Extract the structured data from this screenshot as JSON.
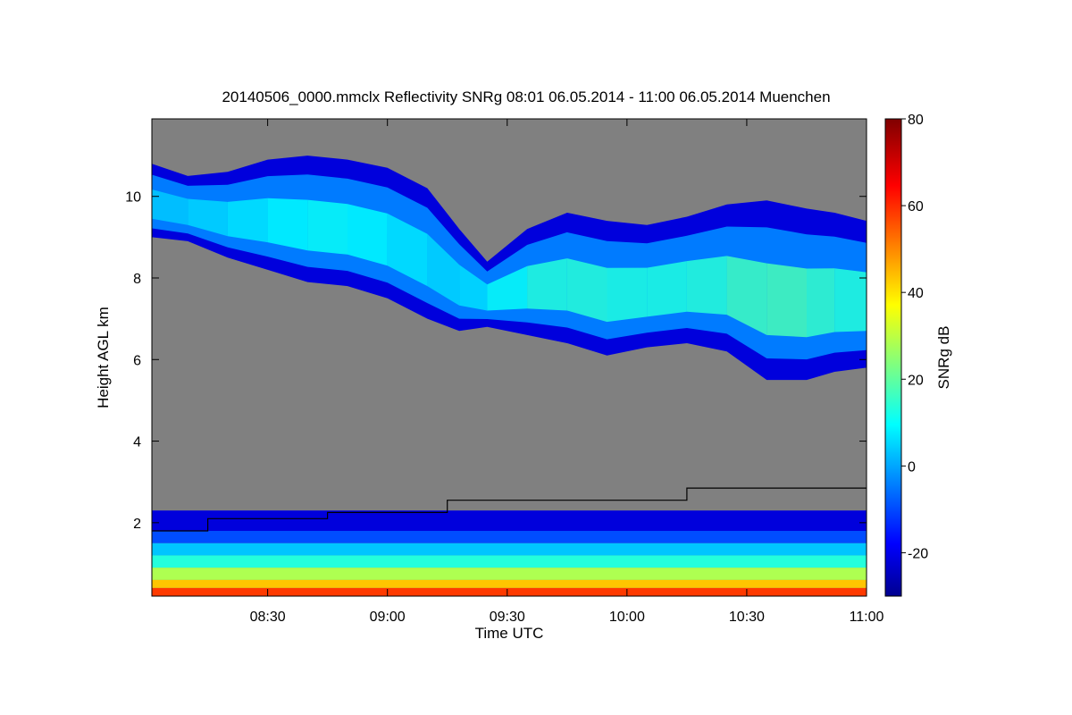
{
  "chart_data": {
    "type": "heatmap",
    "title": "20140506_0000.mmclx Reflectivity SNRg   08:01 06.05.2014 - 11:00 06.05.2014 Muenchen",
    "xlabel": "Time UTC",
    "ylabel": "Height AGL km",
    "x_range_minutes_utc": [
      481,
      660
    ],
    "x_ticks": [
      {
        "minutes": 510,
        "label": "08:30"
      },
      {
        "minutes": 540,
        "label": "09:00"
      },
      {
        "minutes": 570,
        "label": "09:30"
      },
      {
        "minutes": 600,
        "label": "10:00"
      },
      {
        "minutes": 630,
        "label": "10:30"
      },
      {
        "minutes": 660,
        "label": "11:00"
      }
    ],
    "y_range_km": [
      0.2,
      11.9
    ],
    "y_ticks": [
      {
        "km": 2,
        "label": "2"
      },
      {
        "km": 4,
        "label": "4"
      },
      {
        "km": 6,
        "label": "6"
      },
      {
        "km": 8,
        "label": "8"
      },
      {
        "km": 10,
        "label": "10"
      }
    ],
    "colorbar": {
      "label": "SNRg dB",
      "range": [
        -30,
        80
      ],
      "ticks": [
        {
          "value": -20,
          "label": "-20"
        },
        {
          "value": 0,
          "label": "0"
        },
        {
          "value": 20,
          "label": "20"
        },
        {
          "value": 40,
          "label": "40"
        },
        {
          "value": 60,
          "label": "60"
        },
        {
          "value": 80,
          "label": "80"
        }
      ],
      "colormap": "jet"
    },
    "background_color": "#808080",
    "boundary_layer_line": {
      "description": "step line of boundary layer height",
      "points": [
        {
          "t": 481,
          "h": 1.8
        },
        {
          "t": 495,
          "h": 1.8
        },
        {
          "t": 495,
          "h": 2.1
        },
        {
          "t": 525,
          "h": 2.1
        },
        {
          "t": 525,
          "h": 2.25
        },
        {
          "t": 555,
          "h": 2.25
        },
        {
          "t": 555,
          "h": 2.55
        },
        {
          "t": 615,
          "h": 2.55
        },
        {
          "t": 615,
          "h": 2.85
        },
        {
          "t": 660,
          "h": 2.85
        }
      ]
    },
    "cloud_layer": {
      "description": "upper cirrus cloud layer, base and top heights in km over time",
      "segments": [
        {
          "t": 481,
          "base": 9.0,
          "top": 10.8,
          "core_snr": 5
        },
        {
          "t": 490,
          "base": 8.9,
          "top": 10.5,
          "core_snr": 6
        },
        {
          "t": 500,
          "base": 8.5,
          "top": 10.6,
          "core_snr": 8
        },
        {
          "t": 510,
          "base": 8.2,
          "top": 10.9,
          "core_snr": 10
        },
        {
          "t": 520,
          "base": 7.9,
          "top": 11.0,
          "core_snr": 12
        },
        {
          "t": 530,
          "base": 7.8,
          "top": 10.9,
          "core_snr": 12
        },
        {
          "t": 540,
          "base": 7.5,
          "top": 10.7,
          "core_snr": 10
        },
        {
          "t": 550,
          "base": 7.0,
          "top": 10.2,
          "core_snr": 8
        },
        {
          "t": 558,
          "base": 6.7,
          "top": 9.2,
          "core_snr": 6
        },
        {
          "t": 565,
          "base": 6.8,
          "top": 8.4,
          "core_snr": 10
        },
        {
          "t": 575,
          "base": 6.6,
          "top": 9.2,
          "core_snr": 14
        },
        {
          "t": 585,
          "base": 6.4,
          "top": 9.6,
          "core_snr": 16
        },
        {
          "t": 595,
          "base": 6.1,
          "top": 9.4,
          "core_snr": 15
        },
        {
          "t": 605,
          "base": 6.3,
          "top": 9.3,
          "core_snr": 14
        },
        {
          "t": 615,
          "base": 6.4,
          "top": 9.5,
          "core_snr": 15
        },
        {
          "t": 625,
          "base": 6.2,
          "top": 9.8,
          "core_snr": 16
        },
        {
          "t": 635,
          "base": 5.5,
          "top": 9.9,
          "core_snr": 20
        },
        {
          "t": 645,
          "base": 5.5,
          "top": 9.7,
          "core_snr": 18
        },
        {
          "t": 652,
          "base": 5.7,
          "top": 9.6,
          "core_snr": 16
        },
        {
          "t": 660,
          "base": 5.8,
          "top": 9.4,
          "core_snr": 14
        }
      ]
    },
    "boundary_layer_echo": {
      "description": "near-surface clutter / boundary layer echo intensity profile",
      "bands": [
        {
          "h_from": 0.2,
          "h_to": 0.4,
          "snr": 60
        },
        {
          "h_from": 0.4,
          "h_to": 0.6,
          "snr": 45
        },
        {
          "h_from": 0.6,
          "h_to": 0.9,
          "snr": 30
        },
        {
          "h_from": 0.9,
          "h_to": 1.2,
          "snr": 15
        },
        {
          "h_from": 1.2,
          "h_to": 1.5,
          "snr": 5
        },
        {
          "h_from": 1.5,
          "h_to": 1.8,
          "snr": -8
        },
        {
          "h_from": 1.8,
          "h_to": 2.3,
          "snr": -20
        }
      ]
    }
  }
}
